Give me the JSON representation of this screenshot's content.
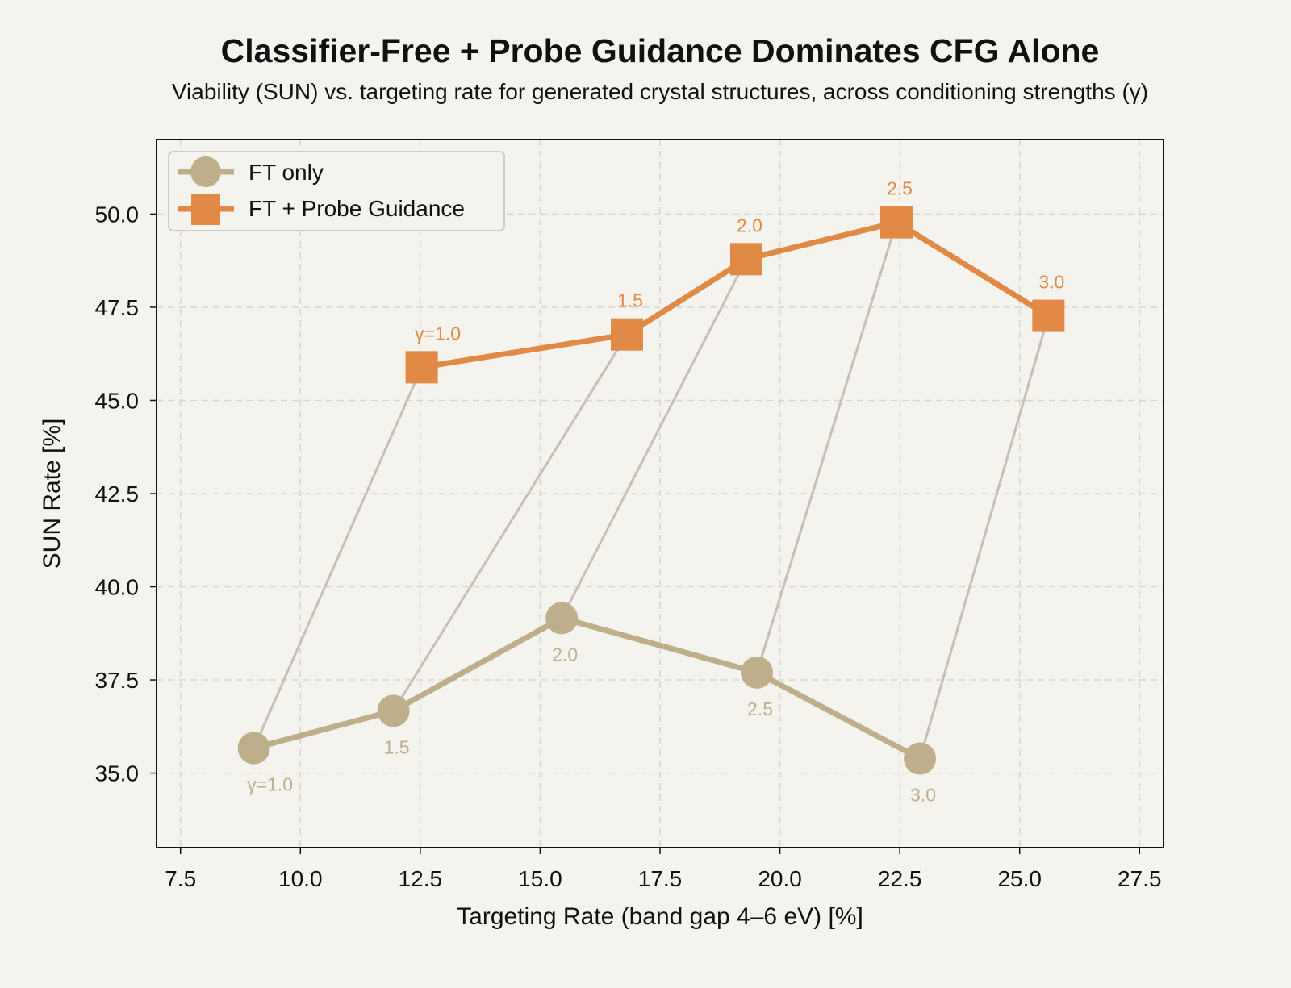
{
  "chart_data": {
    "type": "line",
    "title": "Classifier-Free + Probe Guidance Dominates CFG Alone",
    "subtitle": "Viability (SUN) vs. targeting rate for generated crystal structures, across conditioning strengths (γ)",
    "xlabel": "Targeting Rate (band gap 4–6 eV) [%]",
    "ylabel": "SUN Rate [%]",
    "xlim": [
      7.0,
      28.0
    ],
    "ylim": [
      33.0,
      52.0
    ],
    "xticks": [
      "7.5",
      "10.0",
      "12.5",
      "15.0",
      "17.5",
      "20.0",
      "22.5",
      "25.0",
      "27.5"
    ],
    "yticks": [
      "35.0",
      "37.5",
      "40.0",
      "42.5",
      "45.0",
      "47.5",
      "50.0"
    ],
    "grid": true,
    "legend_position": "top-left",
    "series": [
      {
        "name": "FT only",
        "color": "#bfae8a",
        "marker": "circle",
        "x": [
          9.03,
          11.94,
          15.45,
          19.52,
          22.92
        ],
        "y": [
          35.67,
          36.67,
          39.16,
          37.7,
          35.39
        ],
        "labels": [
          "γ=1.0",
          "1.5",
          "2.0",
          "2.5",
          "3.0"
        ]
      },
      {
        "name": "FT + Probe Guidance",
        "color": "#e08a45",
        "marker": "square",
        "x": [
          12.53,
          16.81,
          19.3,
          22.43,
          25.6
        ],
        "y": [
          45.89,
          46.77,
          48.79,
          49.78,
          47.27
        ],
        "labels": [
          "γ=1.0",
          "1.5",
          "2.0",
          "2.5",
          "3.0"
        ]
      }
    ],
    "connector_color": "#c4c0b8"
  }
}
